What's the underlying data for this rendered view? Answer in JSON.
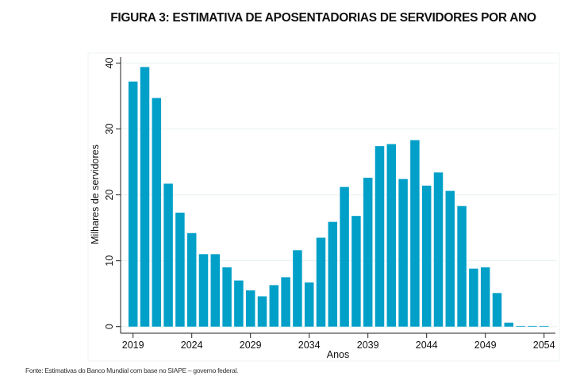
{
  "chart_data": {
    "type": "bar",
    "title": "FIGURA 3: ESTIMATIVA DE APOSENTADORIAS DE SERVIDORES POR ANO",
    "xlabel": "Anos",
    "ylabel": "Milhares de servidores",
    "ylim": [
      0,
      40
    ],
    "xlim": [
      2019,
      2054
    ],
    "yticks": [
      0,
      10,
      20,
      30,
      40
    ],
    "xticks": [
      2019,
      2024,
      2029,
      2034,
      2039,
      2044,
      2049,
      2054
    ],
    "grid": true,
    "legend": "none",
    "bar_color": "#00a0c8",
    "categories": [
      2019,
      2020,
      2021,
      2022,
      2023,
      2024,
      2025,
      2026,
      2027,
      2028,
      2029,
      2030,
      2031,
      2032,
      2033,
      2034,
      2035,
      2036,
      2037,
      2038,
      2039,
      2040,
      2041,
      2042,
      2043,
      2044,
      2045,
      2046,
      2047,
      2048,
      2049,
      2050,
      2051,
      2052,
      2053,
      2054
    ],
    "values": [
      37.2,
      39.4,
      34.7,
      21.7,
      17.3,
      14.2,
      11.0,
      11.0,
      9.0,
      7.0,
      5.5,
      4.6,
      6.3,
      7.5,
      11.6,
      6.7,
      13.5,
      15.9,
      21.2,
      16.8,
      22.6,
      27.4,
      27.7,
      22.4,
      28.3,
      21.4,
      23.4,
      20.6,
      18.3,
      8.8,
      9.0,
      5.1,
      0.6,
      0.1,
      0.1,
      0.1
    ],
    "source": "Fonte: Estimativas do Banco Mundial com base no SIAPE – governo federal."
  }
}
